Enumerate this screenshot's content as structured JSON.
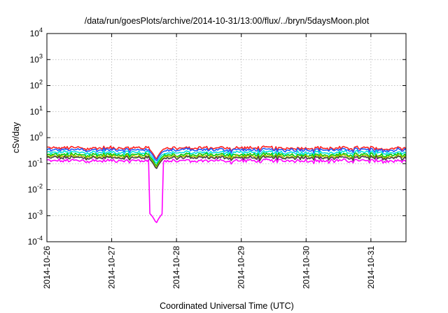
{
  "chart_data": {
    "type": "line",
    "title": "/data/run/goesPlots/archive/2014-10-31/13:00/flux/../bryn/5daysMoon.plot",
    "xlabel": "Coordinated Universal Time (UTC)",
    "ylabel": "cSv/day",
    "yscale": "log",
    "ylim": [
      0.0001,
      10000
    ],
    "xlim": [
      "2014-10-26 00:00",
      "2014-10-31 13:00"
    ],
    "grid": true,
    "x_ticks": [
      "2014-10-26",
      "2014-10-27",
      "2014-10-28",
      "2014-10-29",
      "2014-10-30",
      "2014-10-31"
    ],
    "y_ticks": [
      {
        "base": "10",
        "exp": "-4"
      },
      {
        "base": "10",
        "exp": "-3"
      },
      {
        "base": "10",
        "exp": "-2"
      },
      {
        "base": "10",
        "exp": "-1"
      },
      {
        "base": "10",
        "exp": "0"
      },
      {
        "base": "10",
        "exp": "1"
      },
      {
        "base": "10",
        "exp": "2"
      },
      {
        "base": "10",
        "exp": "3"
      },
      {
        "base": "10",
        "exp": "4"
      }
    ],
    "series": [
      {
        "color": "#ff2020",
        "base": 0.4,
        "spike_min": null
      },
      {
        "color": "#1e5aff",
        "base": 0.34,
        "spike_min": null
      },
      {
        "color": "#00e0e0",
        "base": 0.27,
        "spike_min": null
      },
      {
        "color": "#00c800",
        "base": 0.22,
        "spike_min": null
      },
      {
        "color": "#b0c000",
        "base": 0.19,
        "spike_min": null
      },
      {
        "color": "#444444",
        "base": 0.17,
        "spike_min": null
      },
      {
        "color": "#ff00ff",
        "base": 0.13,
        "spike_min": 0.0005
      }
    ],
    "notable_features": [
      {
        "x": "2014-10-27 16:30",
        "y_min": 0.0005,
        "series_color": "#ff00ff"
      }
    ]
  }
}
